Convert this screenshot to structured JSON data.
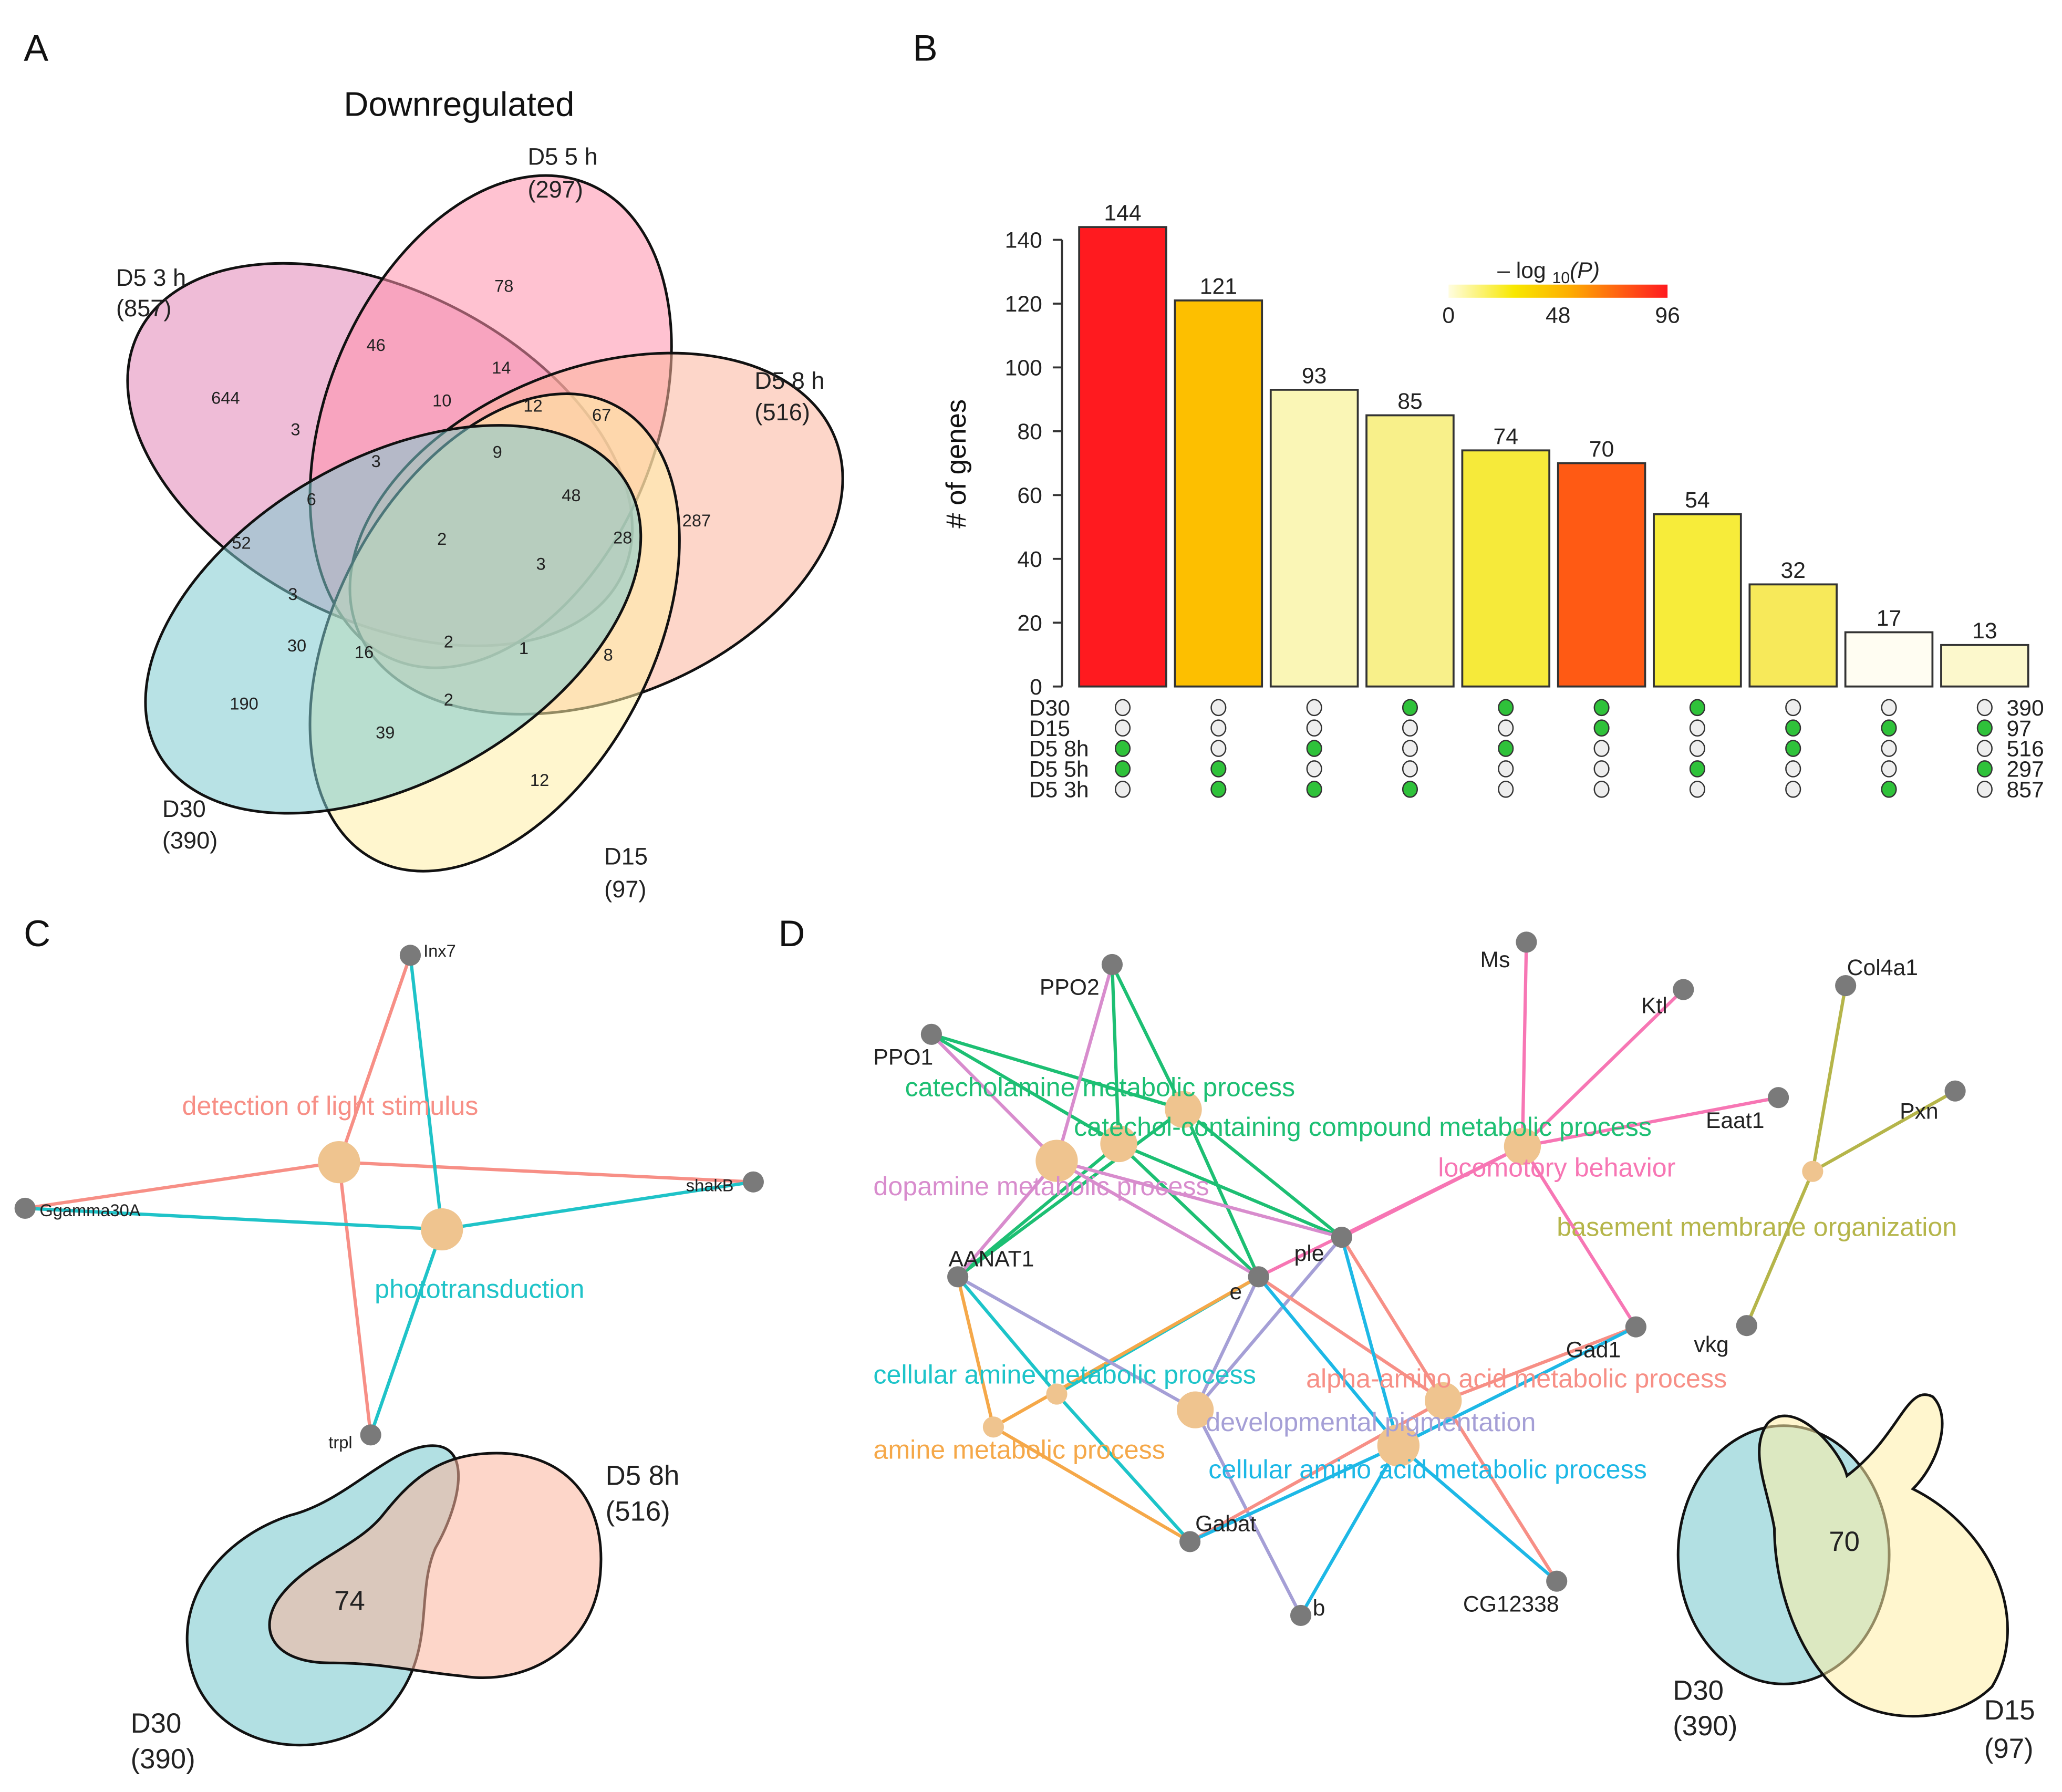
{
  "panels": {
    "a": "A",
    "b": "B",
    "c": "C",
    "d": "D"
  },
  "venn_a": {
    "title": "Downregulated",
    "sets": [
      {
        "name": "D5 3 h",
        "count": "(857)",
        "color": "#e48fbd"
      },
      {
        "name": "D5 5 h",
        "count": "(297)",
        "color": "#ff8fab"
      },
      {
        "name": "D5 8 h",
        "count": "(516)",
        "color": "#fbb49c"
      },
      {
        "name": "D15",
        "count": "(97)",
        "color": "#ffeea6"
      },
      {
        "name": "D30",
        "count": "(390)",
        "color": "#7ecbd0"
      }
    ],
    "regions": [
      "644",
      "78",
      "287",
      "12",
      "190",
      "46",
      "14",
      "10",
      "12",
      "67",
      "3",
      "3",
      "9",
      "48",
      "6",
      "52",
      "2",
      "28",
      "3",
      "3",
      "30",
      "16",
      "2",
      "1",
      "8",
      "2",
      "39"
    ]
  },
  "chart_data": {
    "type": "bar",
    "title": "",
    "xlabel": "",
    "ylabel": "# of genes",
    "ylim": [
      0,
      145
    ],
    "yticks": [
      "0",
      "20",
      "40",
      "60",
      "80",
      "100",
      "120",
      "140"
    ],
    "values": [
      144,
      121,
      93,
      85,
      74,
      70,
      54,
      32,
      17,
      13
    ],
    "value_labels": [
      "144",
      "121",
      "93",
      "85",
      "74",
      "70",
      "54",
      "32",
      "17",
      "13"
    ],
    "bar_colors": [
      "#ff1a1f",
      "#fdbf00",
      "#faf6b6",
      "#f8f08a",
      "#f6ea3a",
      "#ff5a14",
      "#f7ec3a",
      "#f7e95a",
      "#fffdf2",
      "#fcf8cc"
    ],
    "colorbar": {
      "title_prefix": "– log",
      "title_sub": "10",
      "title_suffix": "(P)",
      "ticks": [
        "0",
        "48",
        "96"
      ],
      "range": [
        0,
        96
      ]
    },
    "sets": [
      {
        "name": "D30",
        "total": "390"
      },
      {
        "name": "D15",
        "total": "97"
      },
      {
        "name": "D5 8h",
        "total": "516"
      },
      {
        "name": "D5 5h",
        "total": "297"
      },
      {
        "name": "D5 3h",
        "total": "857"
      }
    ],
    "membership": [
      [
        0,
        0,
        1,
        1,
        0
      ],
      [
        0,
        0,
        0,
        1,
        1
      ],
      [
        0,
        0,
        1,
        0,
        1
      ],
      [
        1,
        0,
        0,
        0,
        1
      ],
      [
        1,
        0,
        1,
        0,
        0
      ],
      [
        1,
        1,
        0,
        0,
        0
      ],
      [
        1,
        0,
        0,
        1,
        0
      ],
      [
        0,
        1,
        1,
        0,
        0
      ],
      [
        0,
        1,
        0,
        0,
        1
      ],
      [
        0,
        1,
        0,
        1,
        0
      ]
    ],
    "dot_on_color": "#2fc23a"
  },
  "network_c": {
    "genes": [
      "Inx7",
      "Ggamma30A",
      "shakB",
      "trpl"
    ],
    "terms": [
      {
        "label": "detection of light stimulus",
        "color": "#f78f86",
        "genes": [
          "Inx7",
          "Ggamma30A",
          "shakB",
          "trpl"
        ]
      },
      {
        "label": "phototransduction",
        "color": "#1fc3c8",
        "genes": [
          "Inx7",
          "Ggamma30A",
          "shakB",
          "trpl"
        ]
      }
    ],
    "venn": {
      "sets": [
        {
          "name": "D5 8h",
          "count": "(516)"
        },
        {
          "name": "D30",
          "count": "(390)"
        }
      ],
      "overlap": "74"
    }
  },
  "network_d": {
    "genes": [
      "PPO2",
      "PPO1",
      "AANAT1",
      "e",
      "ple",
      "Gabat",
      "b",
      "CG12338",
      "Gad1",
      "Ms",
      "Ktl",
      "Eaat1",
      "Col4a1",
      "Pxn",
      "vkg"
    ],
    "terms": [
      {
        "label": "catecholamine metabolic process",
        "color": "#1dbf73",
        "genes": [
          "PPO1",
          "PPO2",
          "AANAT1",
          "e",
          "ple"
        ]
      },
      {
        "label": "catechol-containing compound metabolic process",
        "color": "#1dbf73",
        "genes": [
          "PPO1",
          "PPO2",
          "AANAT1",
          "e",
          "ple"
        ]
      },
      {
        "label": "dopamine metabolic process",
        "color": "#d88ccd",
        "genes": [
          "PPO1",
          "PPO2",
          "AANAT1",
          "e",
          "ple"
        ]
      },
      {
        "label": "locomotory behavior",
        "color": "#f776b4",
        "genes": [
          "Ms",
          "Ktl",
          "Eaat1",
          "Gad1",
          "ple",
          "e"
        ]
      },
      {
        "label": "basement membrane organization",
        "color": "#b5b54a",
        "genes": [
          "Col4a1",
          "Pxn",
          "vkg"
        ]
      },
      {
        "label": "cellular amine metabolic process",
        "color": "#1dc4c9",
        "genes": [
          "AANAT1",
          "e",
          "Gabat"
        ]
      },
      {
        "label": "amine metabolic process",
        "color": "#f5a849",
        "genes": [
          "AANAT1",
          "e",
          "Gabat"
        ]
      },
      {
        "label": "developmental pigmentation",
        "color": "#a59fd6",
        "genes": [
          "AANAT1",
          "e",
          "ple",
          "b"
        ]
      },
      {
        "label": "alpha-amino acid metabolic process",
        "color": "#f78f86",
        "genes": [
          "e",
          "ple",
          "Gad1",
          "Gabat",
          "CG12338"
        ]
      },
      {
        "label": "cellular amino acid metabolic process",
        "color": "#1db8e6",
        "genes": [
          "e",
          "ple",
          "Gad1",
          "Gabat",
          "CG12338",
          "b"
        ]
      }
    ],
    "venn": {
      "sets": [
        {
          "name": "D30",
          "count": "(390)"
        },
        {
          "name": "D15",
          "count": "(97)"
        }
      ],
      "overlap": "70"
    }
  }
}
